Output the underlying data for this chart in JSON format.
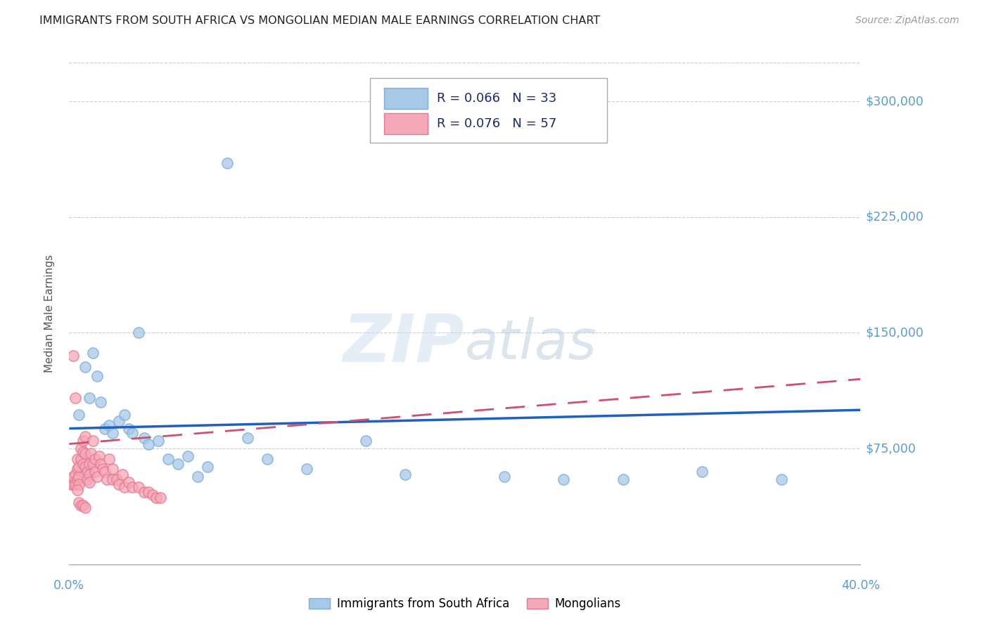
{
  "title": "IMMIGRANTS FROM SOUTH AFRICA VS MONGOLIAN MEDIAN MALE EARNINGS CORRELATION CHART",
  "source": "Source: ZipAtlas.com",
  "ylabel": "Median Male Earnings",
  "xlim": [
    0.0,
    0.4
  ],
  "ylim": [
    0,
    325000
  ],
  "yticks": [
    75000,
    150000,
    225000,
    300000
  ],
  "ytick_labels": [
    "$75,000",
    "$150,000",
    "$225,000",
    "$300,000"
  ],
  "legend1_r": "0.066",
  "legend1_n": "33",
  "legend2_r": "0.076",
  "legend2_n": "57",
  "legend1_label": "Immigrants from South Africa",
  "legend2_label": "Mongolians",
  "blue_color": "#a8c8e8",
  "pink_color": "#f4a8b8",
  "blue_edge_color": "#7ab0d8",
  "pink_edge_color": "#e87890",
  "blue_line_color": "#2060c0",
  "pink_line_color": "#d05070",
  "axis_label_color": "#5b9bd5",
  "legend_text_color": "#1a2a6c",
  "watermark_color": "#c8dcf0",
  "blue_scatter_x": [
    0.005,
    0.008,
    0.01,
    0.012,
    0.014,
    0.016,
    0.018,
    0.02,
    0.022,
    0.025,
    0.028,
    0.03,
    0.032,
    0.035,
    0.038,
    0.04,
    0.045,
    0.05,
    0.055,
    0.06,
    0.065,
    0.07,
    0.08,
    0.09,
    0.1,
    0.12,
    0.15,
    0.17,
    0.22,
    0.25,
    0.28,
    0.32,
    0.36
  ],
  "blue_scatter_y": [
    97000,
    128000,
    108000,
    137000,
    122000,
    105000,
    88000,
    90000,
    85000,
    93000,
    97000,
    88000,
    85000,
    150000,
    82000,
    78000,
    80000,
    68000,
    65000,
    70000,
    57000,
    63000,
    260000,
    82000,
    68000,
    62000,
    80000,
    58000,
    57000,
    55000,
    55000,
    60000,
    55000
  ],
  "pink_scatter_x": [
    0.001,
    0.002,
    0.002,
    0.003,
    0.003,
    0.004,
    0.004,
    0.004,
    0.005,
    0.005,
    0.005,
    0.006,
    0.006,
    0.007,
    0.007,
    0.007,
    0.008,
    0.008,
    0.008,
    0.009,
    0.009,
    0.01,
    0.01,
    0.01,
    0.011,
    0.012,
    0.012,
    0.013,
    0.013,
    0.014,
    0.015,
    0.016,
    0.017,
    0.018,
    0.019,
    0.02,
    0.022,
    0.022,
    0.024,
    0.025,
    0.027,
    0.028,
    0.03,
    0.032,
    0.035,
    0.038,
    0.04,
    0.042,
    0.044,
    0.046,
    0.002,
    0.003,
    0.004,
    0.005,
    0.006,
    0.007,
    0.008
  ],
  "pink_scatter_y": [
    52000,
    52000,
    57000,
    52000,
    58000,
    55000,
    62000,
    68000,
    57000,
    63000,
    52000,
    75000,
    68000,
    80000,
    73000,
    65000,
    83000,
    72000,
    63000,
    60000,
    55000,
    65000,
    58000,
    53000,
    72000,
    80000,
    65000,
    68000,
    60000,
    57000,
    70000,
    65000,
    62000,
    60000,
    55000,
    68000,
    62000,
    55000,
    55000,
    52000,
    58000,
    50000,
    53000,
    50000,
    50000,
    47000,
    47000,
    45000,
    43000,
    43000,
    135000,
    108000,
    48000,
    40000,
    38000,
    38000,
    37000
  ],
  "blue_trend_x": [
    0.0,
    0.4
  ],
  "blue_trend_y": [
    88000,
    100000
  ],
  "pink_trend_x": [
    0.0,
    0.4
  ],
  "pink_trend_y": [
    78000,
    120000
  ]
}
